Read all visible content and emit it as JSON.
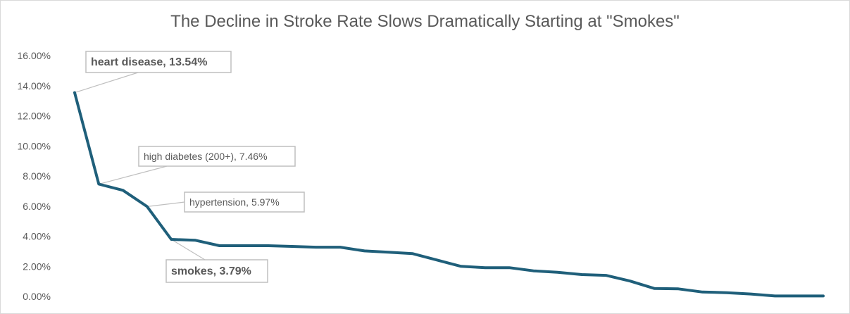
{
  "chart_data": {
    "type": "line",
    "title": "The Decline in Stroke Rate Slows Dramatically Starting at \"Smokes\"",
    "xlabel": "",
    "ylabel": "",
    "ylim": [
      0,
      0.16
    ],
    "y_ticks": [
      "0.00%",
      "2.00%",
      "4.00%",
      "6.00%",
      "8.00%",
      "10.00%",
      "12.00%",
      "14.00%",
      "16.00%"
    ],
    "grid": false,
    "legend": "none",
    "series": [
      {
        "color": "#1f5f7a",
        "values": [
          0.1354,
          0.0746,
          0.0705,
          0.0597,
          0.0379,
          0.0373,
          0.0337,
          0.0337,
          0.0337,
          0.0332,
          0.0327,
          0.0327,
          0.0302,
          0.0294,
          0.0284,
          0.0242,
          0.02,
          0.0191,
          0.0191,
          0.017,
          0.016,
          0.0145,
          0.014,
          0.0102,
          0.0053,
          0.005,
          0.0029,
          0.0025,
          0.0016,
          0.0003,
          0.0003,
          0.0003
        ]
      }
    ],
    "annotations": [
      {
        "index": 0,
        "text": "heart disease, 13.54%",
        "bold": true
      },
      {
        "index": 1,
        "text": "high diabetes (200+), 7.46%",
        "bold": false
      },
      {
        "index": 3,
        "text": "hypertension, 5.97%",
        "bold": false
      },
      {
        "index": 4,
        "text": "smokes, 3.79%",
        "bold": true
      }
    ]
  }
}
